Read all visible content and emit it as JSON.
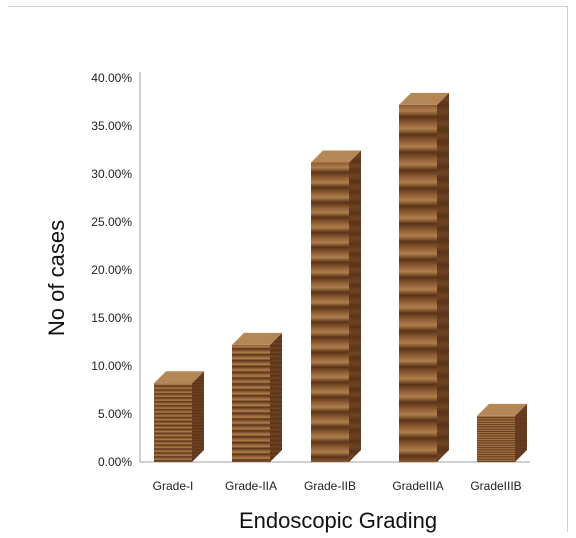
{
  "chart_data": {
    "type": "bar",
    "style": "3d-wood-texture",
    "categories": [
      "Grade-I",
      "Grade-IIA",
      "Grade-IIB",
      "GradeIIIA",
      "GradeIIIB"
    ],
    "values": [
      8.2,
      12.2,
      31.2,
      37.2,
      4.8
    ],
    "xlabel": "Endoscopic Grading",
    "ylabel": "No of cases",
    "ylim": [
      0,
      40
    ],
    "y_ticks": [
      "0.00%",
      "5.00%",
      "10.00%",
      "15.00%",
      "20.00%",
      "25.00%",
      "30.00%",
      "35.00%",
      "40.00%"
    ],
    "grid": false,
    "legend": "none",
    "colors": {
      "front": "#8a5a32",
      "front_dark": "#5a3418",
      "front_light": "#b07e4c",
      "side": "#6e4424",
      "top": "#b58656",
      "axis": "#a0a0a0"
    }
  }
}
